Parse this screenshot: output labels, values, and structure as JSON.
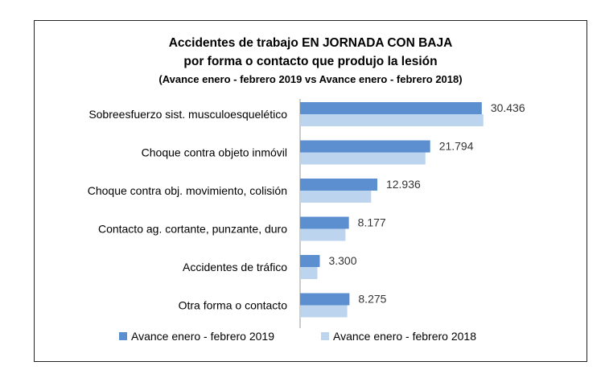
{
  "chart_data": {
    "type": "bar",
    "orientation": "horizontal",
    "title_lines": [
      "Accidentes de trabajo EN JORNADA CON BAJA",
      "por forma o contacto que produjo la lesión",
      "(Avance enero - febrero 2019 vs Avance enero - febrero 2018)"
    ],
    "categories": [
      "Sobreesfuerzo sist. musculoesquelético",
      "Choque contra objeto inmóvil",
      "Choque contra obj. movimiento, colisión",
      "Contacto ag. cortante, punzante, duro",
      "Accidentes de tráfico",
      "Otra forma o contacto"
    ],
    "series": [
      {
        "name": "Avance enero - febrero 2019",
        "color": "#5b8fd0",
        "values": [
          30436,
          21794,
          12936,
          8177,
          3300,
          8275
        ],
        "labels": [
          "30.436",
          "21.794",
          "12.936",
          "8.177",
          "3.300",
          "8.275"
        ]
      },
      {
        "name": "Avance enero - febrero 2018",
        "color": "#bcd4ee",
        "values": [
          30700,
          21000,
          11900,
          7600,
          2900,
          7900
        ]
      }
    ],
    "xlim": [
      0,
      31000
    ],
    "grid": false,
    "legend_position": "bottom"
  }
}
